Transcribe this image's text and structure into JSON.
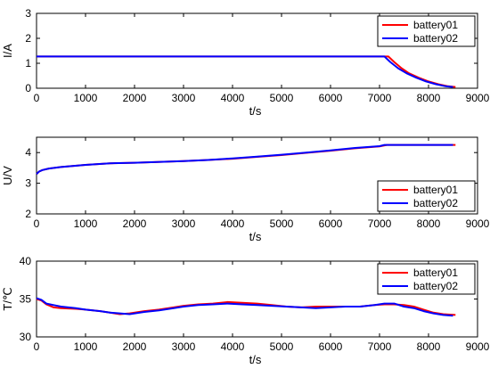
{
  "chart_data": [
    {
      "type": "line",
      "xlabel": "t/s",
      "ylabel": "I/A",
      "xlim": [
        0,
        9000
      ],
      "ylim": [
        0,
        3
      ],
      "xticks": [
        0,
        1000,
        2000,
        3000,
        4000,
        5000,
        6000,
        7000,
        8000,
        9000
      ],
      "yticks": [
        0,
        1,
        2,
        3
      ],
      "grid": false,
      "legend": "top-right",
      "series": [
        {
          "name": "battery01",
          "color": "#ff0000",
          "x": [
            0,
            7180,
            7300,
            7450,
            7600,
            7800,
            8000,
            8200,
            8400,
            8550
          ],
          "y": [
            1.27,
            1.27,
            1.05,
            0.8,
            0.6,
            0.42,
            0.27,
            0.16,
            0.08,
            0.05
          ]
        },
        {
          "name": "battery02",
          "color": "#0000ff",
          "x": [
            0,
            7100,
            7220,
            7380,
            7550,
            7750,
            7950,
            8150,
            8350,
            8500
          ],
          "y": [
            1.27,
            1.27,
            1.05,
            0.8,
            0.6,
            0.42,
            0.27,
            0.16,
            0.08,
            0.05
          ]
        }
      ]
    },
    {
      "type": "line",
      "xlabel": "t/s",
      "ylabel": "U/V",
      "xlim": [
        0,
        9000
      ],
      "ylim": [
        2,
        4.5
      ],
      "xticks": [
        0,
        1000,
        2000,
        3000,
        4000,
        5000,
        6000,
        7000,
        8000,
        9000
      ],
      "yticks": [
        2,
        3,
        4
      ],
      "grid": false,
      "legend": "bottom-right",
      "series": [
        {
          "name": "battery01",
          "color": "#ff0000",
          "x": [
            0,
            50,
            120,
            250,
            500,
            1000,
            1500,
            2000,
            3000,
            3500,
            4000,
            4500,
            5000,
            5500,
            6000,
            6500,
            7000,
            7150,
            8550
          ],
          "y": [
            3.3,
            3.38,
            3.43,
            3.48,
            3.53,
            3.6,
            3.65,
            3.67,
            3.72,
            3.76,
            3.8,
            3.86,
            3.92,
            3.99,
            4.06,
            4.14,
            4.2,
            4.25,
            4.25
          ]
        },
        {
          "name": "battery02",
          "color": "#0000ff",
          "x": [
            0,
            50,
            120,
            250,
            500,
            1000,
            1500,
            2000,
            3000,
            3500,
            4000,
            4500,
            5000,
            5500,
            6000,
            6500,
            7000,
            7100,
            8500
          ],
          "y": [
            3.3,
            3.38,
            3.43,
            3.48,
            3.53,
            3.6,
            3.65,
            3.67,
            3.72,
            3.76,
            3.81,
            3.87,
            3.93,
            4.0,
            4.07,
            4.15,
            4.21,
            4.25,
            4.25
          ]
        }
      ]
    },
    {
      "type": "line",
      "xlabel": "t/s",
      "ylabel": "T/℃",
      "xlim": [
        0,
        9000
      ],
      "ylim": [
        30,
        40
      ],
      "xticks": [
        0,
        1000,
        2000,
        3000,
        4000,
        5000,
        6000,
        7000,
        8000,
        9000
      ],
      "yticks": [
        30,
        35,
        40
      ],
      "grid": false,
      "legend": "top-right",
      "series": [
        {
          "name": "battery01",
          "color": "#ff0000",
          "x": [
            0,
            100,
            200,
            350,
            500,
            800,
            1000,
            1300,
            1500,
            1700,
            1900,
            2200,
            2500,
            2800,
            3000,
            3300,
            3600,
            3900,
            4200,
            4500,
            4800,
            5100,
            5400,
            5700,
            6000,
            6300,
            6600,
            6900,
            7100,
            7300,
            7500,
            7700,
            7900,
            8100,
            8300,
            8550
          ],
          "y": [
            35.0,
            34.8,
            34.3,
            33.9,
            33.8,
            33.7,
            33.6,
            33.4,
            33.2,
            33.0,
            33.1,
            33.4,
            33.6,
            33.9,
            34.1,
            34.3,
            34.4,
            34.6,
            34.5,
            34.4,
            34.2,
            34.0,
            33.9,
            34.0,
            34.0,
            34.0,
            34.0,
            34.2,
            34.3,
            34.3,
            34.2,
            34.0,
            33.6,
            33.2,
            33.0,
            32.9
          ]
        },
        {
          "name": "battery02",
          "color": "#0000ff",
          "x": [
            0,
            100,
            200,
            350,
            500,
            800,
            1000,
            1300,
            1500,
            1700,
            1900,
            2200,
            2500,
            2800,
            3000,
            3300,
            3600,
            3900,
            4200,
            4500,
            4800,
            5100,
            5400,
            5700,
            6000,
            6300,
            6600,
            6900,
            7100,
            7300,
            7500,
            7700,
            7900,
            8100,
            8300,
            8500
          ],
          "y": [
            35.1,
            34.9,
            34.4,
            34.2,
            34.0,
            33.8,
            33.6,
            33.4,
            33.2,
            33.1,
            33.0,
            33.3,
            33.5,
            33.8,
            34.0,
            34.2,
            34.3,
            34.4,
            34.3,
            34.2,
            34.1,
            34.0,
            33.9,
            33.8,
            33.9,
            34.0,
            34.0,
            34.2,
            34.4,
            34.4,
            34.0,
            33.8,
            33.4,
            33.1,
            32.9,
            32.8
          ]
        }
      ]
    }
  ]
}
